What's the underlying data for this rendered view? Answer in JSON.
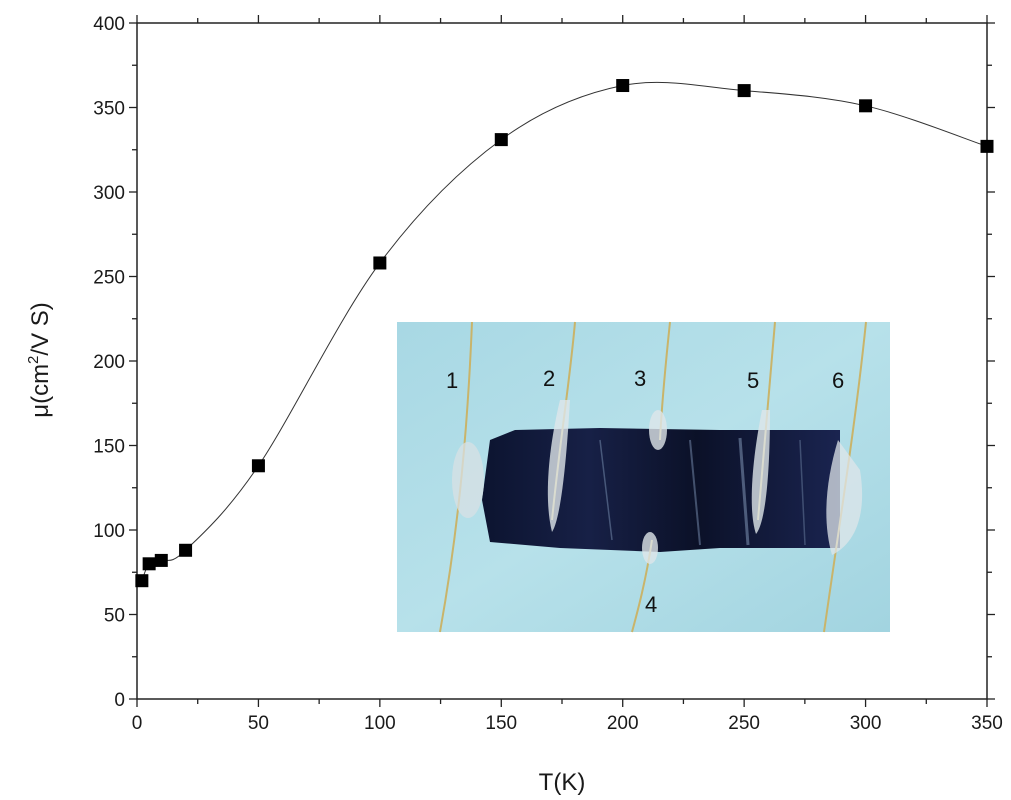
{
  "chart_data": {
    "type": "scatter",
    "xlabel": "T(K)",
    "ylabel_main": "μ(cm",
    "ylabel_sup": "2",
    "ylabel_rest": "/V S)",
    "xlim": [
      0,
      350
    ],
    "ylim": [
      0,
      400
    ],
    "xticks": [
      0,
      50,
      100,
      150,
      200,
      250,
      300,
      350
    ],
    "yticks": [
      0,
      50,
      100,
      150,
      200,
      250,
      300,
      350,
      400
    ],
    "grid": false,
    "marker": "square",
    "connected": true,
    "series": [
      {
        "x": [
          2,
          5,
          10,
          20,
          50,
          100,
          150,
          200,
          250,
          300,
          350
        ],
        "y": [
          70,
          80,
          82,
          88,
          138,
          258,
          331,
          363,
          360,
          351,
          327
        ]
      }
    ],
    "inset": {
      "type": "photo",
      "contact_labels": [
        "1",
        "2",
        "3",
        "4",
        "5",
        "6"
      ]
    }
  }
}
